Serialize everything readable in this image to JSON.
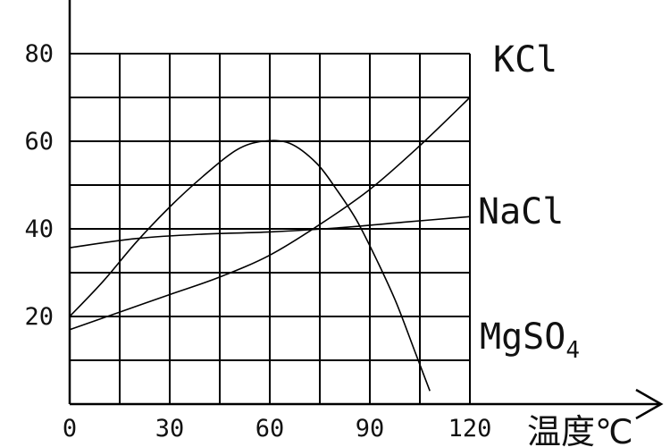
{
  "chart_data": {
    "type": "line",
    "xlabel": "温度℃",
    "ylabel": "",
    "xlim": [
      0,
      120
    ],
    "ylim": [
      0,
      80
    ],
    "x_ticks": [
      "0",
      "30",
      "60",
      "90",
      "120"
    ],
    "y_ticks": [
      "20",
      "40",
      "60",
      "80"
    ],
    "grid": true,
    "series": [
      {
        "name": "KCl",
        "points": [
          [
            0,
            17
          ],
          [
            15,
            21
          ],
          [
            30,
            25
          ],
          [
            45,
            29
          ],
          [
            60,
            34
          ],
          [
            75,
            41
          ],
          [
            90,
            49
          ],
          [
            105,
            59
          ],
          [
            120,
            70
          ]
        ]
      },
      {
        "name": "NaCl",
        "points": [
          [
            0,
            35.7
          ],
          [
            20,
            37.8
          ],
          [
            40,
            38.8
          ],
          [
            60,
            39.3
          ],
          [
            80,
            40.2
          ],
          [
            100,
            41.5
          ],
          [
            120,
            42.8
          ]
        ]
      },
      {
        "name": "MgSO4",
        "name_main": "MgSO",
        "name_sub": "4",
        "points": [
          [
            0,
            20
          ],
          [
            10,
            28
          ],
          [
            20,
            37
          ],
          [
            30,
            45
          ],
          [
            40,
            52
          ],
          [
            50,
            58
          ],
          [
            58,
            60
          ],
          [
            66,
            59.5
          ],
          [
            74,
            55
          ],
          [
            80,
            49
          ],
          [
            86,
            42
          ],
          [
            92,
            33
          ],
          [
            98,
            23
          ],
          [
            104,
            11
          ],
          [
            108,
            3
          ]
        ]
      }
    ]
  }
}
